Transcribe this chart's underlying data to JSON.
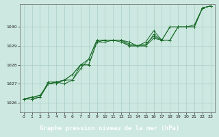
{
  "title": "Graphe pression niveau de la mer (hPa)",
  "bg_color": "#cce8e0",
  "plot_bg_color": "#cce8e0",
  "grid_color": "#aacfc8",
  "line_color": "#1a6b2a",
  "marker_color": "#1a6b2a",
  "xlabel_bg": "#2a6040",
  "xlabel_color": "#ffffff",
  "xlim": [
    -0.5,
    23.5
  ],
  "ylim": [
    1025.5,
    1031.2
  ],
  "yticks": [
    1026,
    1027,
    1028,
    1029,
    1030
  ],
  "xticks": [
    0,
    1,
    2,
    3,
    4,
    5,
    6,
    7,
    8,
    9,
    10,
    11,
    12,
    13,
    14,
    15,
    16,
    17,
    18,
    19,
    20,
    21,
    22,
    23
  ],
  "series": [
    [
      1026.2,
      1026.2,
      1026.3,
      1027.0,
      1027.0,
      1027.2,
      1027.2,
      1028.0,
      1028.3,
      1029.3,
      1029.3,
      1029.3,
      1029.3,
      1029.2,
      1029.0,
      1029.0,
      1029.6,
      1029.3,
      1030.0,
      1030.0,
      1030.0,
      1030.0,
      1031.0,
      1031.1
    ],
    [
      1026.2,
      1026.2,
      1026.3,
      1027.1,
      1027.1,
      1027.0,
      1027.2,
      1027.8,
      1028.3,
      1029.3,
      1029.3,
      1029.3,
      1029.3,
      1029.0,
      1029.0,
      1029.2,
      1029.8,
      1029.3,
      1029.3,
      1030.0,
      1030.0,
      1030.1,
      1031.0,
      1031.1
    ],
    [
      1026.2,
      1026.3,
      1026.3,
      1027.0,
      1027.1,
      1027.2,
      1027.5,
      1028.0,
      1028.0,
      1029.2,
      1029.3,
      1029.3,
      1029.3,
      1029.1,
      1029.0,
      1029.1,
      1029.5,
      1029.3,
      1029.3,
      1030.0,
      1030.0,
      1030.0,
      1031.0,
      1031.1
    ],
    [
      1026.2,
      1026.3,
      1026.4,
      1027.0,
      1027.1,
      1027.2,
      1027.5,
      1028.0,
      1028.0,
      1029.2,
      1029.2,
      1029.3,
      1029.2,
      1029.0,
      1029.0,
      1029.0,
      1029.4,
      1029.3,
      1030.0,
      1030.0,
      1030.0,
      1030.0,
      1031.0,
      1031.1
    ]
  ]
}
